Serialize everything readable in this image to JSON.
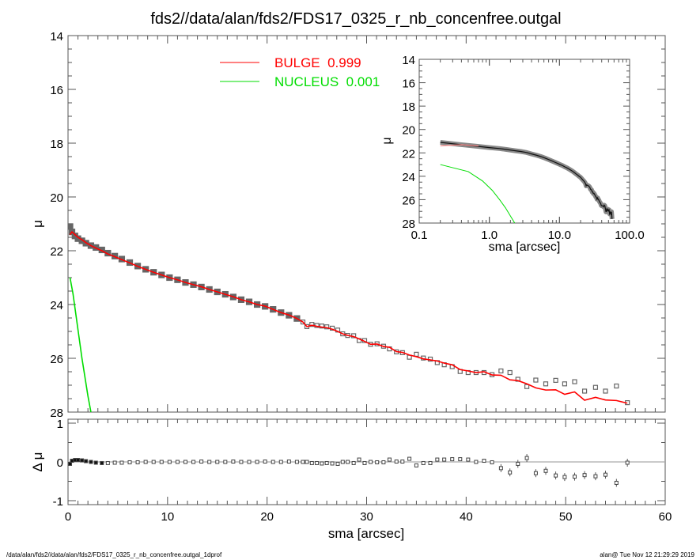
{
  "chart_data": {
    "type": "line",
    "title": "fds2//data/alan/fds2/FDS17_0325_r_nb_concenfree.outgal",
    "footer_left": "/data/alan/fds2//data/alan/fds2/FDS17_0325_r_nb_concenfree.outgal_1dprof",
    "footer_right": "alan@  Tue Nov 12 21:29:29 2019",
    "main": {
      "xlabel": "sma [arcsec]",
      "ylabel": "μ",
      "xlim": [
        0,
        60
      ],
      "ylim": [
        28,
        14
      ],
      "xticks": [
        "0",
        "10",
        "20",
        "30",
        "40",
        "50",
        "60"
      ],
      "yticks": [
        "14",
        "16",
        "18",
        "20",
        "22",
        "24",
        "26",
        "28"
      ]
    },
    "residual": {
      "ylabel": "Δ μ",
      "ylim": [
        -1.1,
        1.1
      ],
      "yticks": [
        "1",
        "0",
        "-1"
      ]
    },
    "inset": {
      "xlabel": "sma [arcsec]",
      "ylabel": "μ",
      "xscale": "log",
      "xlim": [
        0.1,
        100
      ],
      "ylim": [
        28,
        14
      ],
      "xticks": [
        "0.1",
        "1.0",
        "10.0",
        "100.0"
      ],
      "yticks": [
        "14",
        "16",
        "18",
        "20",
        "22",
        "24",
        "26",
        "28"
      ]
    },
    "legend": {
      "placement": "top-center",
      "entries": [
        {
          "label": "BULGE  0.999",
          "color": "#ff0000"
        },
        {
          "label": "NUCLEUS  0.001",
          "color": "#00dd00"
        }
      ]
    },
    "colors": {
      "data": "#666666",
      "bulge": "#ff0000",
      "nucleus": "#00dd00",
      "zero_line": "#aaaaaa"
    },
    "series": {
      "sma": [
        0.2,
        0.4,
        0.7,
        1.0,
        1.4,
        1.8,
        2.3,
        2.8,
        3.4,
        4.0,
        4.7,
        5.4,
        6.2,
        7.0,
        7.8,
        8.6,
        9.4,
        10.2,
        11.0,
        11.8,
        12.6,
        13.4,
        14.2,
        15.0,
        15.8,
        16.6,
        17.4,
        18.2,
        19.0,
        19.8,
        20.6,
        21.4,
        22.2,
        23.0,
        23.6,
        24.0,
        24.5,
        25.0,
        25.5,
        26.0,
        26.55,
        27.1,
        27.6,
        28.1,
        28.7,
        29.25,
        29.8,
        30.4,
        31.05,
        31.7,
        32.3,
        33.0,
        33.6,
        34.3,
        35.0,
        35.7,
        36.4,
        37.1,
        37.8,
        38.6,
        39.4,
        40.2,
        41.0,
        41.8,
        42.6,
        43.5,
        44.4,
        45.2,
        46.1,
        47.0,
        48.0,
        49.0,
        49.9,
        50.9,
        51.9,
        53.0,
        54.0,
        55.1,
        56.2
      ],
      "mu_observed": [
        21.1,
        21.3,
        21.45,
        21.55,
        21.63,
        21.72,
        21.81,
        21.88,
        21.97,
        22.09,
        22.2,
        22.31,
        22.44,
        22.57,
        22.69,
        22.8,
        22.9,
        23.0,
        23.08,
        23.18,
        23.26,
        23.35,
        23.44,
        23.53,
        23.62,
        23.72,
        23.82,
        23.9,
        24.0,
        24.07,
        24.18,
        24.3,
        24.4,
        24.52,
        24.65,
        24.82,
        24.74,
        24.78,
        24.8,
        24.83,
        24.88,
        24.95,
        25.09,
        25.15,
        25.16,
        25.34,
        25.34,
        25.48,
        25.46,
        25.55,
        25.65,
        25.76,
        25.79,
        25.96,
        25.85,
        25.99,
        26.03,
        26.16,
        26.24,
        26.31,
        26.49,
        26.53,
        26.53,
        26.53,
        26.61,
        26.47,
        26.53,
        26.78,
        27.05,
        26.81,
        26.95,
        26.82,
        26.95,
        26.87,
        27.22,
        27.08,
        27.22,
        27.03,
        27.65
      ],
      "mu_bulge": [
        21.4,
        21.3,
        21.4,
        21.5,
        21.59,
        21.7,
        21.81,
        21.9,
        22.0,
        22.12,
        22.22,
        22.33,
        22.45,
        22.58,
        22.69,
        22.8,
        22.9,
        23.0,
        23.08,
        23.18,
        23.26,
        23.34,
        23.44,
        23.53,
        23.62,
        23.71,
        23.82,
        23.9,
        24.0,
        24.06,
        24.18,
        24.3,
        24.39,
        24.52,
        24.65,
        24.82,
        24.77,
        24.81,
        24.84,
        24.86,
        24.92,
        25.0,
        25.09,
        25.15,
        25.19,
        25.28,
        25.37,
        25.48,
        25.47,
        25.56,
        25.59,
        25.75,
        25.78,
        25.88,
        25.94,
        26.02,
        26.06,
        26.1,
        26.18,
        26.24,
        26.42,
        26.47,
        26.53,
        26.5,
        26.62,
        26.63,
        26.8,
        26.83,
        26.95,
        27.1,
        27.18,
        27.17,
        27.34,
        27.25,
        27.56,
        27.45,
        27.55,
        27.57,
        27.67
      ],
      "residual": [
        -0.05,
        0.03,
        0.05,
        0.05,
        0.04,
        0.02,
        0,
        -0.02,
        -0.03,
        -0.03,
        -0.02,
        -0.02,
        -0.01,
        -0.01,
        0,
        0,
        0,
        0,
        0,
        0,
        0,
        0.01,
        0,
        0,
        0,
        0.01,
        0,
        0,
        0,
        0.01,
        0,
        0,
        0.01,
        0,
        0,
        0,
        -0.03,
        -0.03,
        -0.04,
        -0.03,
        -0.04,
        -0.05,
        0,
        0,
        -0.03,
        0.06,
        -0.03,
        0,
        -0.01,
        -0.01,
        0.06,
        0.01,
        0.01,
        0.08,
        -0.09,
        -0.03,
        -0.03,
        0.06,
        0.06,
        0.07,
        0.07,
        0.06,
        0,
        0.03,
        -0.01,
        -0.16,
        -0.27,
        -0.05,
        0.1,
        -0.29,
        -0.23,
        -0.35,
        -0.39,
        -0.38,
        -0.34,
        -0.37,
        -0.33,
        -0.54,
        -0.02
      ],
      "nucleus_sma": [
        0.2,
        0.5,
        0.8,
        1.1,
        1.4,
        1.7,
        2.0,
        2.3
      ],
      "mu_nucleus": [
        23.0,
        23.6,
        24.4,
        25.2,
        26.0,
        26.7,
        27.4,
        28.0
      ]
    }
  }
}
